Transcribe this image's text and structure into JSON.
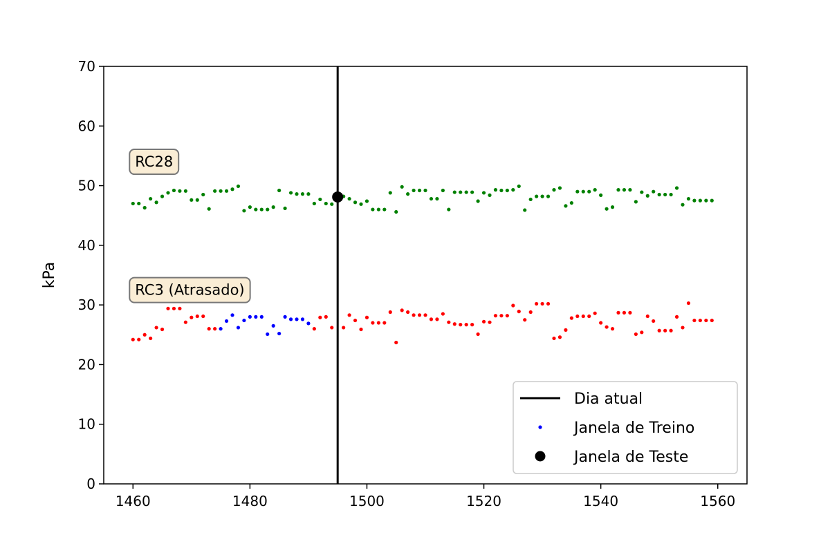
{
  "chart_data": {
    "type": "scatter",
    "title": "",
    "xlabel": "",
    "ylabel": "kPa",
    "xlim": [
      1455,
      1565
    ],
    "ylim": [
      0,
      70
    ],
    "xticks": [
      1460,
      1480,
      1500,
      1520,
      1540,
      1560
    ],
    "yticks": [
      0,
      10,
      20,
      30,
      40,
      50,
      60,
      70
    ],
    "grid": false,
    "legend_position": "bottom-right",
    "vline": {
      "x": 1495,
      "label": "Dia atual",
      "color": "#000000"
    },
    "annotations": [
      {
        "text": "RC28",
        "x": 1460,
        "y": 54
      },
      {
        "text": "RC3 (Atrasado)",
        "x": 1460,
        "y": 32.5
      }
    ],
    "legend": [
      {
        "label": "Dia atual",
        "marker": "line",
        "color": "#000000"
      },
      {
        "label": "Janela de Treino",
        "marker": "dot-small",
        "color": "#0000ff"
      },
      {
        "label": "Janela de Teste",
        "marker": "dot-large",
        "color": "#000000"
      }
    ],
    "series": [
      {
        "color": "#008000",
        "points": [
          [
            1460,
            47
          ],
          [
            1461,
            47
          ],
          [
            1462,
            46.3
          ],
          [
            1463,
            47.8
          ],
          [
            1464,
            47.2
          ],
          [
            1465,
            48.2
          ],
          [
            1466,
            48.8
          ],
          [
            1467,
            49.2
          ],
          [
            1468,
            49.1
          ],
          [
            1469,
            49.1
          ],
          [
            1470,
            47.6
          ],
          [
            1471,
            47.6
          ],
          [
            1472,
            48.5
          ],
          [
            1473,
            46.1
          ],
          [
            1474,
            49.1
          ],
          [
            1475,
            49.1
          ],
          [
            1476,
            49.1
          ],
          [
            1477,
            49.4
          ],
          [
            1478,
            49.9
          ],
          [
            1479,
            45.8
          ],
          [
            1480,
            46.4
          ],
          [
            1481,
            46
          ],
          [
            1482,
            46
          ],
          [
            1483,
            46
          ],
          [
            1484,
            46.4
          ],
          [
            1485,
            49.2
          ],
          [
            1486,
            46.2
          ],
          [
            1487,
            48.8
          ],
          [
            1488,
            48.6
          ],
          [
            1489,
            48.6
          ],
          [
            1490,
            48.6
          ],
          [
            1491,
            47
          ],
          [
            1492,
            47.7
          ],
          [
            1493,
            47
          ],
          [
            1494,
            46.9
          ],
          [
            1495,
            48.1
          ],
          [
            1496,
            48.2
          ],
          [
            1497,
            47.8
          ],
          [
            1498,
            47.2
          ],
          [
            1499,
            46.9
          ],
          [
            1500,
            47.4
          ],
          [
            1501,
            46
          ],
          [
            1502,
            46
          ],
          [
            1503,
            46
          ],
          [
            1504,
            48.8
          ],
          [
            1505,
            45.6
          ],
          [
            1506,
            49.8
          ],
          [
            1507,
            48.6
          ],
          [
            1508,
            49.2
          ],
          [
            1509,
            49.2
          ],
          [
            1510,
            49.2
          ],
          [
            1511,
            47.8
          ],
          [
            1512,
            47.8
          ],
          [
            1513,
            49.2
          ],
          [
            1514,
            46
          ],
          [
            1515,
            48.9
          ],
          [
            1516,
            48.9
          ],
          [
            1517,
            48.9
          ],
          [
            1518,
            48.9
          ],
          [
            1519,
            47.4
          ],
          [
            1520,
            48.8
          ],
          [
            1521,
            48.4
          ],
          [
            1522,
            49.3
          ],
          [
            1523,
            49.2
          ],
          [
            1524,
            49.2
          ],
          [
            1525,
            49.3
          ],
          [
            1526,
            49.9
          ],
          [
            1527,
            45.9
          ],
          [
            1528,
            47.7
          ],
          [
            1529,
            48.2
          ],
          [
            1530,
            48.2
          ],
          [
            1531,
            48.2
          ],
          [
            1532,
            49.3
          ],
          [
            1533,
            49.6
          ],
          [
            1534,
            46.6
          ],
          [
            1535,
            47.1
          ],
          [
            1536,
            49
          ],
          [
            1537,
            49
          ],
          [
            1538,
            49
          ],
          [
            1539,
            49.3
          ],
          [
            1540,
            48.4
          ],
          [
            1541,
            46.1
          ],
          [
            1542,
            46.4
          ],
          [
            1543,
            49.3
          ],
          [
            1544,
            49.3
          ],
          [
            1545,
            49.3
          ],
          [
            1546,
            47.3
          ],
          [
            1547,
            48.9
          ],
          [
            1548,
            48.3
          ],
          [
            1549,
            49
          ],
          [
            1550,
            48.5
          ],
          [
            1551,
            48.5
          ],
          [
            1552,
            48.5
          ],
          [
            1553,
            49.6
          ],
          [
            1554,
            46.8
          ],
          [
            1555,
            47.8
          ],
          [
            1556,
            47.5
          ],
          [
            1557,
            47.5
          ],
          [
            1558,
            47.5
          ],
          [
            1559,
            47.5
          ]
        ]
      },
      {
        "color": "#ff0000",
        "points": [
          [
            1460,
            24.2
          ],
          [
            1461,
            24.2
          ],
          [
            1462,
            25
          ],
          [
            1463,
            24.4
          ],
          [
            1464,
            26.2
          ],
          [
            1465,
            25.9
          ],
          [
            1466,
            29.4
          ],
          [
            1467,
            29.4
          ],
          [
            1468,
            29.4
          ],
          [
            1469,
            27.1
          ],
          [
            1470,
            27.9
          ],
          [
            1471,
            28.1
          ],
          [
            1472,
            28.1
          ],
          [
            1473,
            26
          ],
          [
            1474,
            26
          ],
          [
            1491,
            26
          ],
          [
            1492,
            27.9
          ],
          [
            1493,
            28
          ],
          [
            1494,
            26.2
          ],
          [
            1496,
            26.2
          ],
          [
            1497,
            28.3
          ],
          [
            1498,
            27.4
          ],
          [
            1499,
            25.9
          ],
          [
            1500,
            27.9
          ],
          [
            1501,
            27
          ],
          [
            1502,
            27
          ],
          [
            1503,
            27
          ],
          [
            1504,
            28.8
          ],
          [
            1505,
            23.7
          ],
          [
            1506,
            29.1
          ],
          [
            1507,
            28.8
          ],
          [
            1508,
            28.3
          ],
          [
            1509,
            28.3
          ],
          [
            1510,
            28.3
          ],
          [
            1511,
            27.6
          ],
          [
            1512,
            27.6
          ],
          [
            1513,
            28.5
          ],
          [
            1514,
            27.1
          ],
          [
            1515,
            26.8
          ],
          [
            1516,
            26.7
          ],
          [
            1517,
            26.7
          ],
          [
            1518,
            26.7
          ],
          [
            1519,
            25.1
          ],
          [
            1520,
            27.2
          ],
          [
            1521,
            27.1
          ],
          [
            1522,
            28.2
          ],
          [
            1523,
            28.2
          ],
          [
            1524,
            28.2
          ],
          [
            1525,
            29.9
          ],
          [
            1526,
            28.9
          ],
          [
            1527,
            27.5
          ],
          [
            1528,
            28.8
          ],
          [
            1529,
            30.2
          ],
          [
            1530,
            30.2
          ],
          [
            1531,
            30.2
          ],
          [
            1532,
            24.4
          ],
          [
            1533,
            24.6
          ],
          [
            1534,
            25.8
          ],
          [
            1535,
            27.8
          ],
          [
            1536,
            28.1
          ],
          [
            1537,
            28.1
          ],
          [
            1538,
            28.1
          ],
          [
            1539,
            28.6
          ],
          [
            1540,
            27
          ],
          [
            1541,
            26.3
          ],
          [
            1542,
            26
          ],
          [
            1543,
            28.7
          ],
          [
            1544,
            28.7
          ],
          [
            1545,
            28.7
          ],
          [
            1546,
            25.1
          ],
          [
            1547,
            25.4
          ],
          [
            1548,
            28.1
          ],
          [
            1549,
            27.3
          ],
          [
            1550,
            25.7
          ],
          [
            1551,
            25.7
          ],
          [
            1552,
            25.7
          ],
          [
            1553,
            28
          ],
          [
            1554,
            26.2
          ],
          [
            1555,
            30.3
          ],
          [
            1556,
            27.4
          ],
          [
            1557,
            27.4
          ],
          [
            1558,
            27.4
          ],
          [
            1559,
            27.4
          ]
        ]
      },
      {
        "name": "Janela de Treino",
        "color": "#0000ff",
        "points": [
          [
            1475,
            26
          ],
          [
            1476,
            27.3
          ],
          [
            1477,
            28.3
          ],
          [
            1478,
            26.2
          ],
          [
            1479,
            27.4
          ],
          [
            1480,
            28
          ],
          [
            1481,
            28
          ],
          [
            1482,
            28
          ],
          [
            1483,
            25.1
          ],
          [
            1484,
            26.5
          ],
          [
            1485,
            25.2
          ],
          [
            1486,
            28
          ],
          [
            1487,
            27.6
          ],
          [
            1488,
            27.6
          ],
          [
            1489,
            27.6
          ],
          [
            1490,
            26.9
          ]
        ]
      },
      {
        "name": "Janela de Teste",
        "color": "#000000",
        "points": [
          [
            1495,
            48.1
          ]
        ]
      }
    ]
  }
}
